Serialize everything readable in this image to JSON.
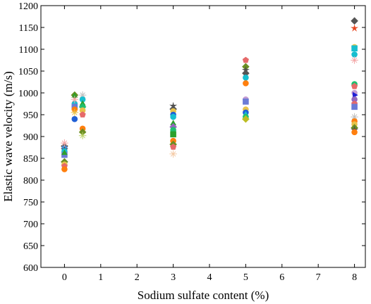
{
  "chart_data": {
    "type": "scatter",
    "title": "",
    "xlabel": "Sodium sulfate content (%)",
    "ylabel": "Elastic wave velocity (m/s)",
    "xlim": [
      -0.65,
      8.3
    ],
    "ylim": [
      600,
      1200
    ],
    "xticks": [
      0,
      1,
      2,
      3,
      4,
      5,
      6,
      7,
      8
    ],
    "yticks": [
      600,
      650,
      700,
      750,
      800,
      850,
      900,
      950,
      1000,
      1050,
      1100,
      1150,
      1200
    ],
    "grid": false,
    "legend": "none",
    "points": [
      {
        "x": 0.0,
        "y": 878,
        "color": "#555555",
        "marker": "diamond"
      },
      {
        "x": 0.0,
        "y": 873,
        "color": "#4a90d9",
        "marker": "circle"
      },
      {
        "x": 0.0,
        "y": 870,
        "color": "#4d4d4d",
        "marker": "star"
      },
      {
        "x": 0.0,
        "y": 885,
        "color": "#f4a6a6",
        "marker": "plus"
      },
      {
        "x": 0.0,
        "y": 866,
        "color": "#17becf",
        "marker": "circle"
      },
      {
        "x": 0.0,
        "y": 858,
        "color": "#6b7bd6",
        "marker": "square"
      },
      {
        "x": 0.0,
        "y": 862,
        "color": "#2ca02c",
        "marker": "triangle"
      },
      {
        "x": 0.0,
        "y": 842,
        "color": "#6b8e23",
        "marker": "diamond"
      },
      {
        "x": 0.0,
        "y": 836,
        "color": "#e8c34a",
        "marker": "circle"
      },
      {
        "x": 0.0,
        "y": 832,
        "color": "#e66a6a",
        "marker": "pentagon"
      },
      {
        "x": 0.0,
        "y": 825,
        "color": "#ff7f0e",
        "marker": "circle"
      },
      {
        "x": 0.28,
        "y": 995,
        "color": "#6b8e23",
        "marker": "diamond"
      },
      {
        "x": 0.28,
        "y": 993,
        "color": "#2ca02c",
        "marker": "triangle"
      },
      {
        "x": 0.28,
        "y": 975,
        "color": "#17becf",
        "marker": "circle"
      },
      {
        "x": 0.28,
        "y": 968,
        "color": "#6b7bd6",
        "marker": "square"
      },
      {
        "x": 0.28,
        "y": 962,
        "color": "#ff7f0e",
        "marker": "circle"
      },
      {
        "x": 0.28,
        "y": 985,
        "color": "#f4a6a6",
        "marker": "plus"
      },
      {
        "x": 0.28,
        "y": 940,
        "color": "#1f5fd6",
        "marker": "circle"
      },
      {
        "x": 0.28,
        "y": 955,
        "color": "#e8c34a",
        "marker": "plus"
      },
      {
        "x": 0.5,
        "y": 995,
        "color": "#c0c0c0",
        "marker": "plus"
      },
      {
        "x": 0.5,
        "y": 985,
        "color": "#17becf",
        "marker": "circle"
      },
      {
        "x": 0.5,
        "y": 975,
        "color": "#2ca02c",
        "marker": "triangle"
      },
      {
        "x": 0.5,
        "y": 968,
        "color": "#1fbf6f",
        "marker": "diamond"
      },
      {
        "x": 0.5,
        "y": 960,
        "color": "#e8c34a",
        "marker": "circle"
      },
      {
        "x": 0.5,
        "y": 950,
        "color": "#e66a6a",
        "marker": "pentagon"
      },
      {
        "x": 0.5,
        "y": 918,
        "color": "#ff7f0e",
        "marker": "circle"
      },
      {
        "x": 0.5,
        "y": 910,
        "color": "#6b8e23",
        "marker": "diamond"
      },
      {
        "x": 0.5,
        "y": 902,
        "color": "#bcd36b",
        "marker": "plus"
      },
      {
        "x": 3.0,
        "y": 970,
        "color": "#4d4d4d",
        "marker": "star"
      },
      {
        "x": 3.0,
        "y": 963,
        "color": "#555555",
        "marker": "diamond"
      },
      {
        "x": 3.0,
        "y": 958,
        "color": "#e8c34a",
        "marker": "circle"
      },
      {
        "x": 3.0,
        "y": 950,
        "color": "#1f5fd6",
        "marker": "circle"
      },
      {
        "x": 3.0,
        "y": 945,
        "color": "#17becf",
        "marker": "circle"
      },
      {
        "x": 3.0,
        "y": 930,
        "color": "#2ca02c",
        "marker": "triangle"
      },
      {
        "x": 3.0,
        "y": 922,
        "color": "#9467bd",
        "marker": "diamond"
      },
      {
        "x": 3.0,
        "y": 915,
        "color": "#1fbf6f",
        "marker": "circle"
      },
      {
        "x": 3.0,
        "y": 905,
        "color": "#2ca02c",
        "marker": "square"
      },
      {
        "x": 3.0,
        "y": 890,
        "color": "#ff7f0e",
        "marker": "circle"
      },
      {
        "x": 3.0,
        "y": 882,
        "color": "#6b8e23",
        "marker": "diamond"
      },
      {
        "x": 3.0,
        "y": 876,
        "color": "#e66a6a",
        "marker": "pentagon"
      },
      {
        "x": 3.0,
        "y": 860,
        "color": "#f5cba7",
        "marker": "plus"
      },
      {
        "x": 5.0,
        "y": 1075,
        "color": "#e66a6a",
        "marker": "pentagon"
      },
      {
        "x": 5.0,
        "y": 1060,
        "color": "#6b8e23",
        "marker": "diamond"
      },
      {
        "x": 5.0,
        "y": 1052,
        "color": "#4d4d4d",
        "marker": "star"
      },
      {
        "x": 5.0,
        "y": 1045,
        "color": "#555555",
        "marker": "diamond"
      },
      {
        "x": 5.0,
        "y": 1035,
        "color": "#17becf",
        "marker": "circle"
      },
      {
        "x": 5.0,
        "y": 1022,
        "color": "#ff7f0e",
        "marker": "circle"
      },
      {
        "x": 5.0,
        "y": 985,
        "color": "#c39bd3",
        "marker": "circle"
      },
      {
        "x": 5.0,
        "y": 980,
        "color": "#6b7bd6",
        "marker": "square"
      },
      {
        "x": 5.0,
        "y": 962,
        "color": "#e8c34a",
        "marker": "circle"
      },
      {
        "x": 5.0,
        "y": 955,
        "color": "#1f5fd6",
        "marker": "circle"
      },
      {
        "x": 5.0,
        "y": 950,
        "color": "#17becf",
        "marker": "triangle"
      },
      {
        "x": 5.0,
        "y": 945,
        "color": "#1fbf6f",
        "marker": "circle"
      },
      {
        "x": 5.0,
        "y": 940,
        "color": "#bcbd22",
        "marker": "diamond"
      },
      {
        "x": 8.0,
        "y": 1165,
        "color": "#555555",
        "marker": "diamond"
      },
      {
        "x": 8.0,
        "y": 1148,
        "color": "#e8451f",
        "marker": "star"
      },
      {
        "x": 8.0,
        "y": 1105,
        "color": "#e8c34a",
        "marker": "circle"
      },
      {
        "x": 8.0,
        "y": 1102,
        "color": "#17becf",
        "marker": "square"
      },
      {
        "x": 8.0,
        "y": 1088,
        "color": "#17becf",
        "marker": "circle"
      },
      {
        "x": 8.0,
        "y": 1075,
        "color": "#f4a6a6",
        "marker": "plus"
      },
      {
        "x": 8.0,
        "y": 1020,
        "color": "#1fbf6f",
        "marker": "circle"
      },
      {
        "x": 8.0,
        "y": 1015,
        "color": "#e66a6a",
        "marker": "pentagon"
      },
      {
        "x": 8.0,
        "y": 1000,
        "color": "#c39bd3",
        "marker": "circle"
      },
      {
        "x": 8.0,
        "y": 995,
        "color": "#1f1fd6",
        "marker": "triangle-right"
      },
      {
        "x": 8.0,
        "y": 985,
        "color": "#9467bd",
        "marker": "circle"
      },
      {
        "x": 8.0,
        "y": 975,
        "color": "#e66a6a",
        "marker": "pentagon"
      },
      {
        "x": 8.0,
        "y": 968,
        "color": "#6b7bd6",
        "marker": "square"
      },
      {
        "x": 8.0,
        "y": 945,
        "color": "#c0c0c0",
        "marker": "plus"
      },
      {
        "x": 8.0,
        "y": 935,
        "color": "#ff7f0e",
        "marker": "circle"
      },
      {
        "x": 8.0,
        "y": 928,
        "color": "#e8c34a",
        "marker": "circle"
      },
      {
        "x": 8.0,
        "y": 920,
        "color": "#6b8e23",
        "marker": "diamond"
      },
      {
        "x": 8.0,
        "y": 915,
        "color": "#4d4d4d",
        "marker": "star"
      },
      {
        "x": 8.0,
        "y": 910,
        "color": "#ff7f0e",
        "marker": "circle"
      }
    ]
  }
}
